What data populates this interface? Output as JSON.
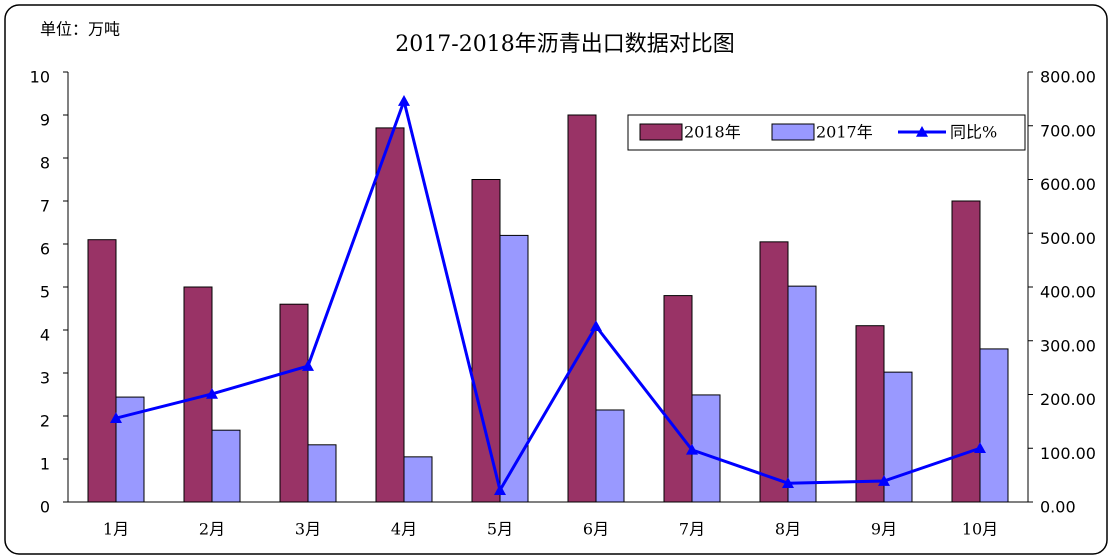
{
  "chart_data": {
    "type": "bar_line",
    "title": "2017-2018年沥青出口数据对比图",
    "unit_label": "单位：万吨",
    "categories": [
      "1月",
      "2月",
      "3月",
      "4月",
      "5月",
      "6月",
      "7月",
      "8月",
      "9月",
      "10月"
    ],
    "series": [
      {
        "name": "2018年",
        "color": "#993366",
        "values": [
          6.1,
          5.0,
          4.6,
          8.7,
          7.5,
          9.0,
          4.8,
          6.05,
          4.1,
          7.0
        ]
      },
      {
        "name": "2017年",
        "color": "#9999ff",
        "values": [
          2.44,
          1.67,
          1.33,
          1.05,
          6.2,
          2.14,
          2.49,
          5.02,
          3.02,
          3.56
        ]
      },
      {
        "name": "同比%",
        "color": "#0000ff",
        "axis": "y2",
        "values": [
          156,
          201,
          253,
          746,
          22,
          327,
          97,
          35,
          39,
          100
        ]
      }
    ],
    "ylim": [
      0,
      10
    ],
    "yticks": [
      0,
      1,
      2,
      3,
      4,
      5,
      6,
      7,
      8,
      9,
      10
    ],
    "y2lim": [
      0,
      800
    ],
    "y2ticks": [
      {
        "value": 0,
        "label": "0.00"
      },
      {
        "value": 100,
        "label": "100.00"
      },
      {
        "value": 200,
        "label": "200.00"
      },
      {
        "value": 300,
        "label": "300.00"
      },
      {
        "value": 400,
        "label": "400.00"
      },
      {
        "value": 500,
        "label": "500.00"
      },
      {
        "value": 600,
        "label": "600.00"
      },
      {
        "value": 700,
        "label": "700.00"
      },
      {
        "value": 800,
        "label": "800.00"
      }
    ],
    "legend": "top-right"
  }
}
